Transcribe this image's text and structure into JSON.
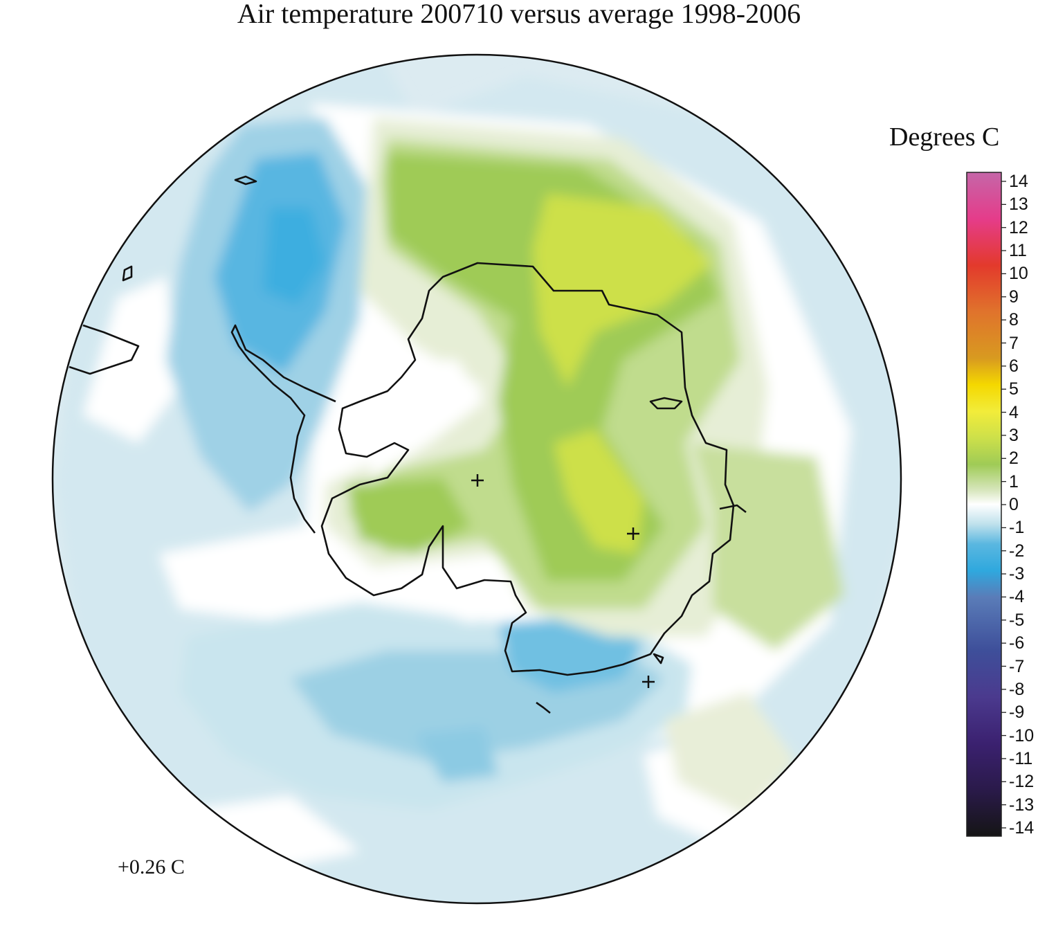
{
  "title": "Air temperature 200710 versus average 1998-2006",
  "legend": {
    "title": "Degrees C",
    "ticks": [
      "14",
      "13",
      "12",
      "11",
      "10",
      "9",
      "8",
      "7",
      "6",
      "5",
      "4",
      "3",
      "2",
      "1",
      "0",
      "-1",
      "-2",
      "-3",
      "-4",
      "-5",
      "-6",
      "-7",
      "-8",
      "-9",
      "-10",
      "-11",
      "-12",
      "-13",
      "-14"
    ],
    "range": [
      -14,
      14
    ],
    "colors": {
      "14": "#c566a8",
      "12": "#e53c8a",
      "10": "#e33a2c",
      "8": "#e0732c",
      "6": "#d89a20",
      "5": "#f4d800",
      "4": "#f2ec3a",
      "3": "#cde04a",
      "2": "#9fcb56",
      "1": "#d9e7c0",
      "0": "#ffffff",
      "-1": "#bfe1ec",
      "-2": "#5ab7e0",
      "-3": "#2fa8de",
      "-4": "#5a7cb8",
      "-6": "#3e4f9a",
      "-8": "#4b3a8e",
      "-10": "#3b2170",
      "-12": "#2a1a4a",
      "-14": "#151515"
    }
  },
  "mean_label": "+0.26 C",
  "map": {
    "projection": "south-polar-stereographic",
    "markers": [
      "pole-cross",
      "station-cross",
      "station-cross"
    ]
  }
}
